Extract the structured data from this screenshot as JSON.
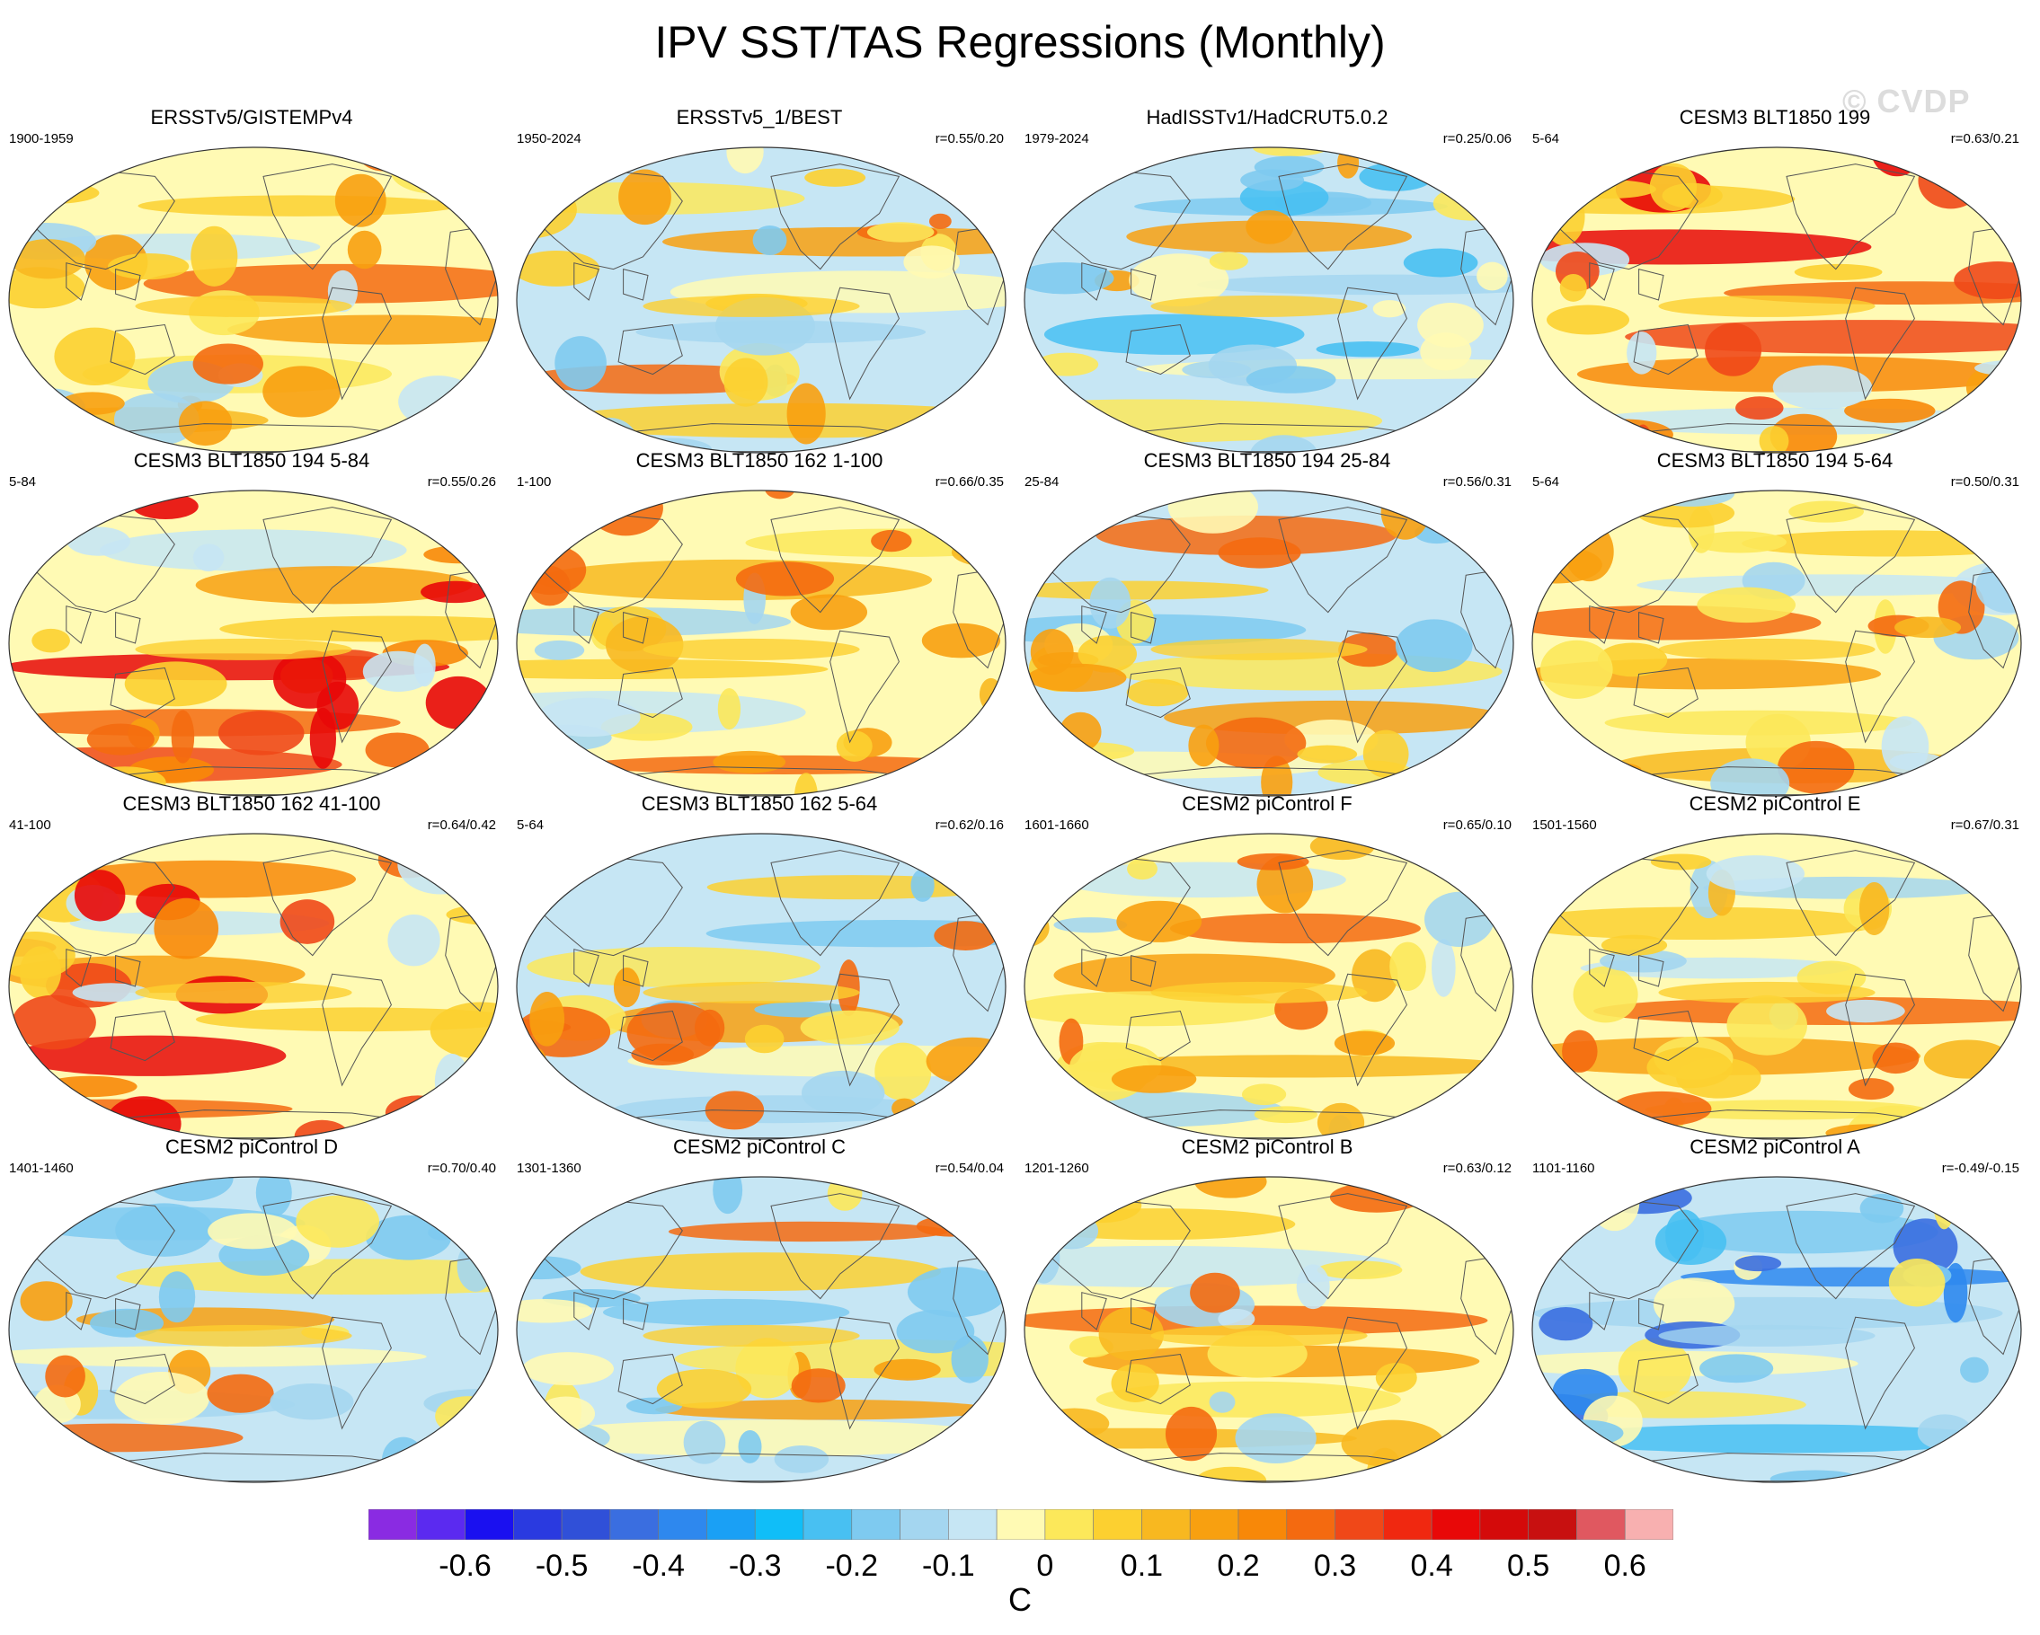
{
  "title": "IPV SST/TAS Regressions (Monthly)",
  "watermark": "© CVDP",
  "panels": [
    {
      "title": "ERSSTv5/GISTEMPv4",
      "years": "1900-1959",
      "corr": "",
      "pattern": "warm"
    },
    {
      "title": "ERSSTv5_1/BEST",
      "years": "1950-2024",
      "corr": "r=0.55/0.20",
      "pattern": "mixed"
    },
    {
      "title": "HadISSTv1/HadCRUT5.0.2",
      "years": "1979-2024",
      "corr": "r=0.25/0.06",
      "pattern": "cool"
    },
    {
      "title": "CESM3 BLT1850 199",
      "years": "5-64",
      "corr": "r=0.63/0.21",
      "pattern": "hot"
    },
    {
      "title": "CESM3 BLT1850 194 5-84",
      "years": "5-84",
      "corr": "r=0.55/0.26",
      "pattern": "hot"
    },
    {
      "title": "CESM3 BLT1850 162 1-100",
      "years": "1-100",
      "corr": "r=0.66/0.35",
      "pattern": "warm"
    },
    {
      "title": "CESM3 BLT1850 194 25-84",
      "years": "25-84",
      "corr": "r=0.56/0.31",
      "pattern": "mixed"
    },
    {
      "title": "CESM3 BLT1850 194 5-64",
      "years": "5-64",
      "corr": "r=0.50/0.31",
      "pattern": "warm"
    },
    {
      "title": "CESM3 BLT1850 162 41-100",
      "years": "41-100",
      "corr": "r=0.64/0.42",
      "pattern": "hot"
    },
    {
      "title": "CESM3 BLT1850 162 5-64",
      "years": "5-64",
      "corr": "r=0.62/0.16",
      "pattern": "mixed"
    },
    {
      "title": "CESM2 piControl F",
      "years": "1601-1660",
      "corr": "r=0.65/0.10",
      "pattern": "warm"
    },
    {
      "title": "CESM2 piControl E",
      "years": "1501-1560",
      "corr": "r=0.67/0.31",
      "pattern": "warm"
    },
    {
      "title": "CESM2 piControl D",
      "years": "1401-1460",
      "corr": "r=0.70/0.40",
      "pattern": "mixed"
    },
    {
      "title": "CESM2 piControl C",
      "years": "1301-1360",
      "corr": "r=0.54/0.04",
      "pattern": "mixed"
    },
    {
      "title": "CESM2 piControl B",
      "years": "1201-1260",
      "corr": "r=0.63/0.12",
      "pattern": "warm"
    },
    {
      "title": "CESM2 piControl A",
      "years": "1101-1160",
      "corr": "r=-0.49/-0.15",
      "pattern": "cold"
    }
  ],
  "colorbar": {
    "units": "C",
    "levels": [
      "-0.6",
      "-0.5",
      "-0.4",
      "-0.3",
      "-0.2",
      "-0.1",
      "0",
      "0.1",
      "0.2",
      "0.3",
      "0.4",
      "0.5",
      "0.6"
    ],
    "level_values": [
      -0.6,
      -0.5,
      -0.4,
      -0.3,
      -0.2,
      -0.1,
      0,
      0.1,
      0.2,
      0.3,
      0.4,
      0.5,
      0.6
    ],
    "min": -0.65,
    "max": 0.7,
    "colors": [
      "#8a2be2",
      "#5b2af0",
      "#1a10f0",
      "#2a3ae0",
      "#3050d8",
      "#3a6ee0",
      "#2e88ee",
      "#1aa0f5",
      "#10bef8",
      "#48c0f2",
      "#7ecaf0",
      "#a4d6f0",
      "#c6e6f4",
      "#fffab4",
      "#fce85a",
      "#fcd030",
      "#f8b820",
      "#f8a010",
      "#f88808",
      "#f46a10",
      "#f04818",
      "#f02810",
      "#e80808",
      "#d40a0a",
      "#c81010",
      "#e05860",
      "#f8b0b0"
    ],
    "color_edges": [
      -0.7,
      -0.65,
      -0.6,
      -0.55,
      -0.5,
      -0.45,
      -0.4,
      -0.35,
      -0.3,
      -0.25,
      -0.2,
      -0.15,
      -0.1,
      -0.05,
      0,
      0.05,
      0.1,
      0.15,
      0.2,
      0.25,
      0.3,
      0.35,
      0.4,
      0.45,
      0.5,
      0.55,
      0.6,
      0.65
    ]
  }
}
